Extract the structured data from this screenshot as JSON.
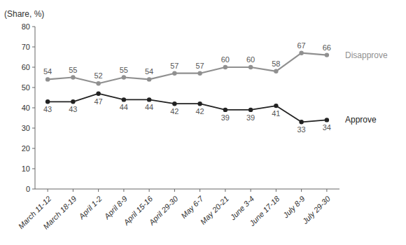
{
  "chart_data": {
    "type": "line",
    "y_label": "(Share, %)",
    "categories": [
      "March 11-12",
      "March 18-19",
      "April 1-2",
      "April 8-9",
      "April 15-16",
      "April 29-30",
      "May 6-7",
      "May 20-21",
      "June 3-4",
      "June 17-18",
      "July 8-9",
      "July 29-30"
    ],
    "series": [
      {
        "name": "Disapprove",
        "color": "#909090",
        "values": [
          54,
          55,
          52,
          55,
          54,
          57,
          57,
          60,
          60,
          58,
          67,
          66
        ]
      },
      {
        "name": "Approve",
        "color": "#222222",
        "values": [
          43,
          43,
          47,
          44,
          44,
          42,
          42,
          39,
          39,
          41,
          33,
          34
        ]
      }
    ],
    "ylim": [
      0,
      80
    ],
    "yticks": [
      0,
      10,
      20,
      30,
      40,
      50,
      60,
      70,
      80
    ],
    "grid": false,
    "marker": "circle",
    "data_labels": true
  }
}
